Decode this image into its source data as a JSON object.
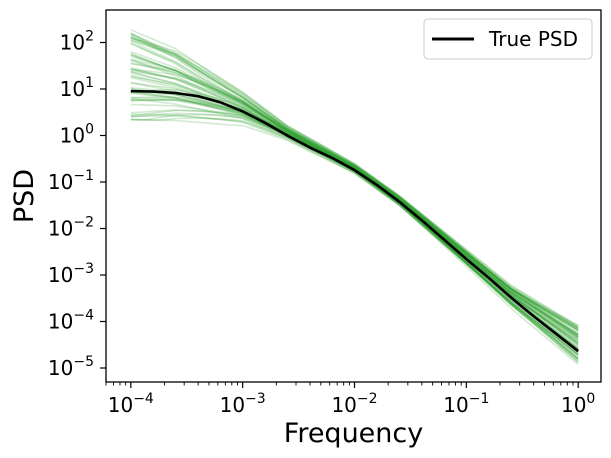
{
  "chart_data": {
    "type": "line",
    "title": "",
    "xlabel": "Frequency",
    "ylabel": "PSD",
    "xscale": "log",
    "yscale": "log",
    "xlim": [
      6e-05,
      1.6
    ],
    "ylim": [
      5e-06,
      500
    ],
    "xticks": [
      {
        "value": 0.0001,
        "base": "10",
        "exp": "−4"
      },
      {
        "value": 0.001,
        "base": "10",
        "exp": "−3"
      },
      {
        "value": 0.01,
        "base": "10",
        "exp": "−2"
      },
      {
        "value": 0.1,
        "base": "10",
        "exp": "−1"
      },
      {
        "value": 1,
        "base": "10",
        "exp": "0"
      }
    ],
    "yticks": [
      {
        "value": 1e-05,
        "base": "10",
        "exp": "−5"
      },
      {
        "value": 0.0001,
        "base": "10",
        "exp": "−4"
      },
      {
        "value": 0.001,
        "base": "10",
        "exp": "−3"
      },
      {
        "value": 0.01,
        "base": "10",
        "exp": "−2"
      },
      {
        "value": 0.1,
        "base": "10",
        "exp": "−1"
      },
      {
        "value": 1,
        "base": "10",
        "exp": "0"
      },
      {
        "value": 10,
        "base": "10",
        "exp": "1"
      },
      {
        "value": 100,
        "base": "10",
        "exp": "2"
      }
    ],
    "legend": {
      "position": "upper-right",
      "entries": [
        {
          "label": "True PSD",
          "color": "#000000"
        }
      ]
    },
    "grid": false,
    "colors": {
      "true_psd": "#000000",
      "samples": "#2ca02c"
    },
    "series": [
      {
        "name": "True PSD",
        "style": "solid",
        "x": [
          0.0001,
          0.00016,
          0.00025,
          0.0004,
          0.00063,
          0.001,
          0.0016,
          0.0025,
          0.004,
          0.0063,
          0.01,
          0.016,
          0.025,
          0.04,
          0.063,
          0.1,
          0.16,
          0.25,
          0.4,
          0.63,
          1
        ],
        "y": [
          9.0,
          8.8,
          8.2,
          7.0,
          5.2,
          3.3,
          1.85,
          1.0,
          0.55,
          0.33,
          0.18,
          0.085,
          0.038,
          0.015,
          0.0058,
          0.0022,
          0.00085,
          0.00033,
          0.00013,
          5.5e-05,
          2.3e-05
        ]
      }
    ],
    "sample_band": {
      "description_count": 60,
      "x": [
        0.0001,
        0.00025,
        0.001,
        0.0025,
        0.01,
        0.025,
        0.1,
        0.25,
        1
      ],
      "y_low": [
        2.2,
        2.1,
        1.6,
        0.75,
        0.14,
        0.028,
        0.0014,
        0.00019,
        1.2e-05
      ],
      "y_high": [
        240,
        95,
        9.5,
        1.7,
        0.26,
        0.055,
        0.0038,
        0.00065,
        9e-05
      ]
    }
  }
}
